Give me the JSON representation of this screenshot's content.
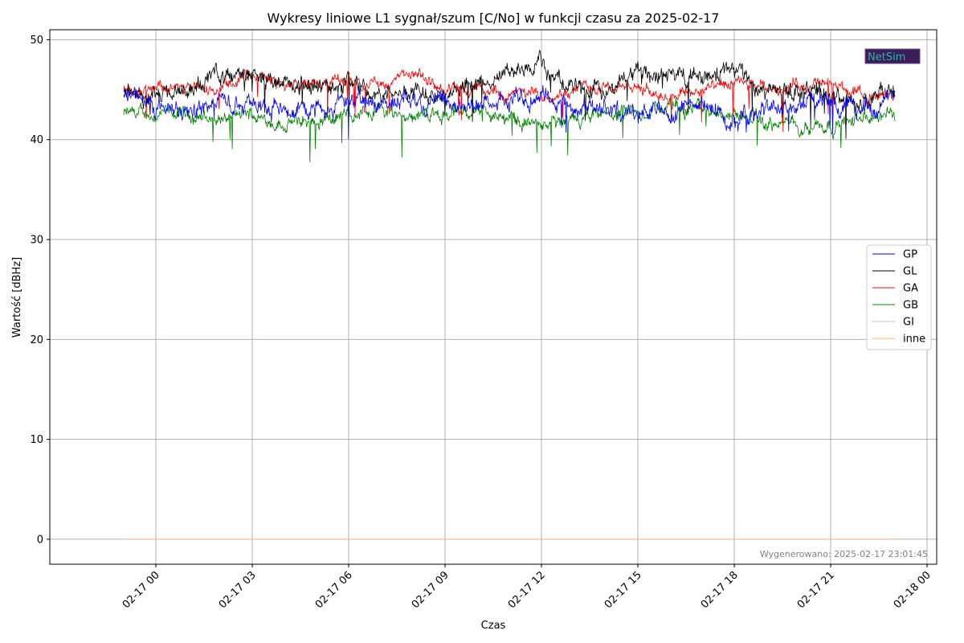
{
  "chart_data": {
    "type": "line",
    "title": "Wykresy liniowe L1 sygnał/szum [C/No] w funkcji czasu za 2025-02-17",
    "xlabel": "Czas",
    "ylabel": "Wartość [dBHz]",
    "x_range_hours": [
      -3.3,
      24.3
    ],
    "ylim": [
      -2.5,
      51
    ],
    "x_ticks": [
      {
        "label": "02-17 00",
        "hour": 0
      },
      {
        "label": "02-17 03",
        "hour": 3
      },
      {
        "label": "02-17 06",
        "hour": 6
      },
      {
        "label": "02-17 09",
        "hour": 9
      },
      {
        "label": "02-17 12",
        "hour": 12
      },
      {
        "label": "02-17 15",
        "hour": 15
      },
      {
        "label": "02-17 18",
        "hour": 18
      },
      {
        "label": "02-17 21",
        "hour": 21
      },
      {
        "label": "02-18 00",
        "hour": 24
      }
    ],
    "y_ticks": [
      0,
      10,
      20,
      30,
      40,
      50
    ],
    "grid": true,
    "legend_position": "right",
    "x_start_hour": -1.0,
    "x_end_hour": 23.0,
    "series": [
      {
        "name": "GP",
        "color": "#0000ff",
        "hours": [
          -1,
          0,
          1,
          2,
          3,
          4,
          5,
          6,
          7,
          8,
          9,
          10,
          11,
          12,
          13,
          14,
          15,
          16,
          17,
          18,
          19,
          20,
          21,
          22,
          23
        ],
        "values": [
          44.5,
          43.5,
          42.8,
          43.8,
          44.0,
          43.0,
          43.5,
          44.0,
          43.5,
          44.5,
          43.0,
          43.5,
          44.0,
          44.5,
          43.0,
          43.5,
          42.5,
          43.0,
          43.5,
          42.0,
          43.0,
          43.5,
          43.5,
          43.0,
          44.0
        ]
      },
      {
        "name": "GL",
        "color": "#000000",
        "hours": [
          -1,
          0,
          1,
          2,
          3,
          4,
          5,
          6,
          7,
          8,
          9,
          10,
          11,
          12,
          13,
          14,
          15,
          16,
          17,
          18,
          19,
          20,
          21,
          22,
          23
        ],
        "values": [
          45.0,
          44.0,
          45.0,
          46.5,
          46.5,
          45.5,
          45.0,
          46.0,
          44.5,
          45.0,
          45.0,
          45.5,
          46.5,
          47.5,
          45.0,
          44.5,
          47.0,
          46.5,
          46.0,
          47.0,
          45.0,
          45.0,
          44.5,
          43.5,
          45.0
        ]
      },
      {
        "name": "GA",
        "color": "#ff0000",
        "hours": [
          -1,
          0,
          1,
          2,
          3,
          4,
          5,
          6,
          7,
          8,
          9,
          10,
          11,
          12,
          13,
          14,
          15,
          16,
          17,
          18,
          19,
          20,
          21,
          22,
          23
        ],
        "values": [
          45.0,
          45.5,
          45.0,
          45.0,
          46.5,
          45.5,
          45.5,
          46.0,
          45.5,
          46.5,
          45.0,
          45.0,
          44.5,
          44.5,
          45.0,
          45.5,
          45.0,
          44.5,
          45.0,
          45.5,
          45.0,
          45.5,
          45.5,
          44.5,
          44.5
        ]
      },
      {
        "name": "GB",
        "color": "#008000",
        "hours": [
          -1,
          0,
          1,
          2,
          3,
          4,
          5,
          6,
          7,
          8,
          9,
          10,
          11,
          12,
          13,
          14,
          15,
          16,
          17,
          18,
          19,
          20,
          21,
          22,
          23
        ],
        "values": [
          42.5,
          42.5,
          42.5,
          42.0,
          42.5,
          41.5,
          42.0,
          42.5,
          43.0,
          42.5,
          42.5,
          43.0,
          42.0,
          41.5,
          41.5,
          42.5,
          42.5,
          43.5,
          43.0,
          42.5,
          41.5,
          41.5,
          41.5,
          42.0,
          42.5
        ]
      },
      {
        "name": "GI",
        "color": "#aec7e8",
        "hours": [
          -1,
          23
        ],
        "values": [
          0,
          0
        ]
      },
      {
        "name": "inne",
        "color": "#ffbb78",
        "hours": [
          -1,
          23
        ],
        "values": [
          0,
          0
        ]
      }
    ]
  },
  "footer": {
    "generated": "Wygenerowano: 2025-02-17 23:01:45"
  },
  "logo": {
    "text": "NetSim"
  }
}
